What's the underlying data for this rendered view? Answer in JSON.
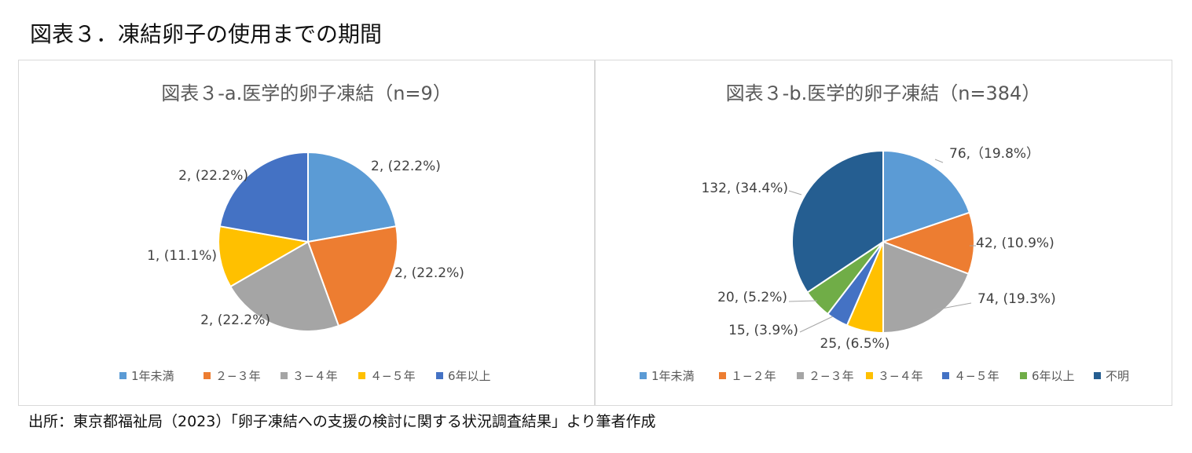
{
  "page_title": "図表３．凍結卵子の使用までの期間",
  "source_note": "出所：東京都福祉局（2023）「卵子凍結への支援の検討に関する状況調査結果」より筆者作成",
  "chart_data": [
    {
      "type": "pie",
      "title": "図表３-a.医学的卵子凍結（n=9）",
      "categories": [
        "1年未満",
        "２−３年",
        "３−４年",
        "４−５年",
        "6年以上"
      ],
      "values": [
        2,
        2,
        2,
        1,
        2
      ],
      "labels": [
        "2, (22.2%)",
        "2, (22.2%)",
        "2, (22.2%)",
        "1, (11.1%)",
        "2, (22.2%)"
      ],
      "colors": [
        "#5B9BD5",
        "#ED7D31",
        "#A5A5A5",
        "#FFC000",
        "#4472C4"
      ],
      "legend_position": "bottom"
    },
    {
      "type": "pie",
      "title": "図表３-b.医学的卵子凍結（n=384）",
      "categories": [
        "1年未満",
        "１−２年",
        "２−３年",
        "３−４年",
        "４−５年",
        "6年以上",
        "不明"
      ],
      "values": [
        76,
        42,
        74,
        25,
        15,
        20,
        132
      ],
      "labels": [
        "76,（19.8%）",
        "42, (10.9%)",
        "74, (19.3%)",
        "25, (6.5%)",
        "15, (3.9%)",
        "20, (5.2%)",
        "132, (34.4%)"
      ],
      "colors": [
        "#5B9BD5",
        "#ED7D31",
        "#A5A5A5",
        "#FFC000",
        "#4472C4",
        "#70AD47",
        "#255E91"
      ],
      "legend_position": "bottom"
    }
  ]
}
